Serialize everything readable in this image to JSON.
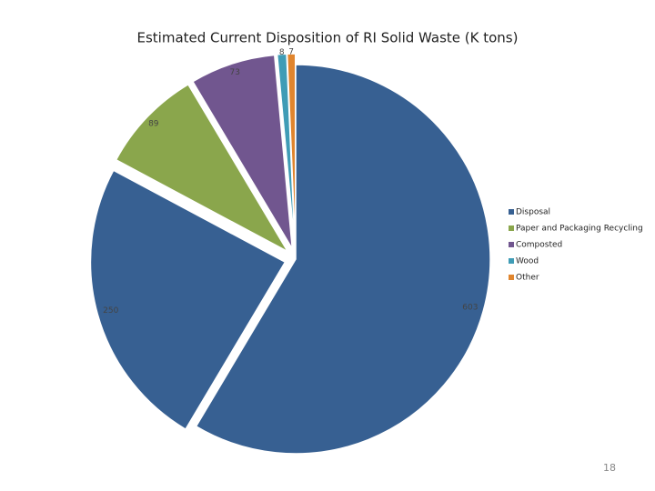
{
  "chart_data": {
    "type": "pie",
    "title": "Estimated Current Disposition of RI Solid Waste (K tons)",
    "categories": [
      "Disposal",
      null,
      "Paper and Packaging Recycling",
      "Composted",
      "Wood",
      "Other"
    ],
    "values": [
      603,
      250,
      89,
      73,
      8,
      7
    ],
    "colors": [
      "#376092",
      "#376092",
      "#8aa64c",
      "#71568f",
      "#3f9cb6",
      "#e0852e"
    ],
    "legend": "right"
  },
  "page_number": "18"
}
